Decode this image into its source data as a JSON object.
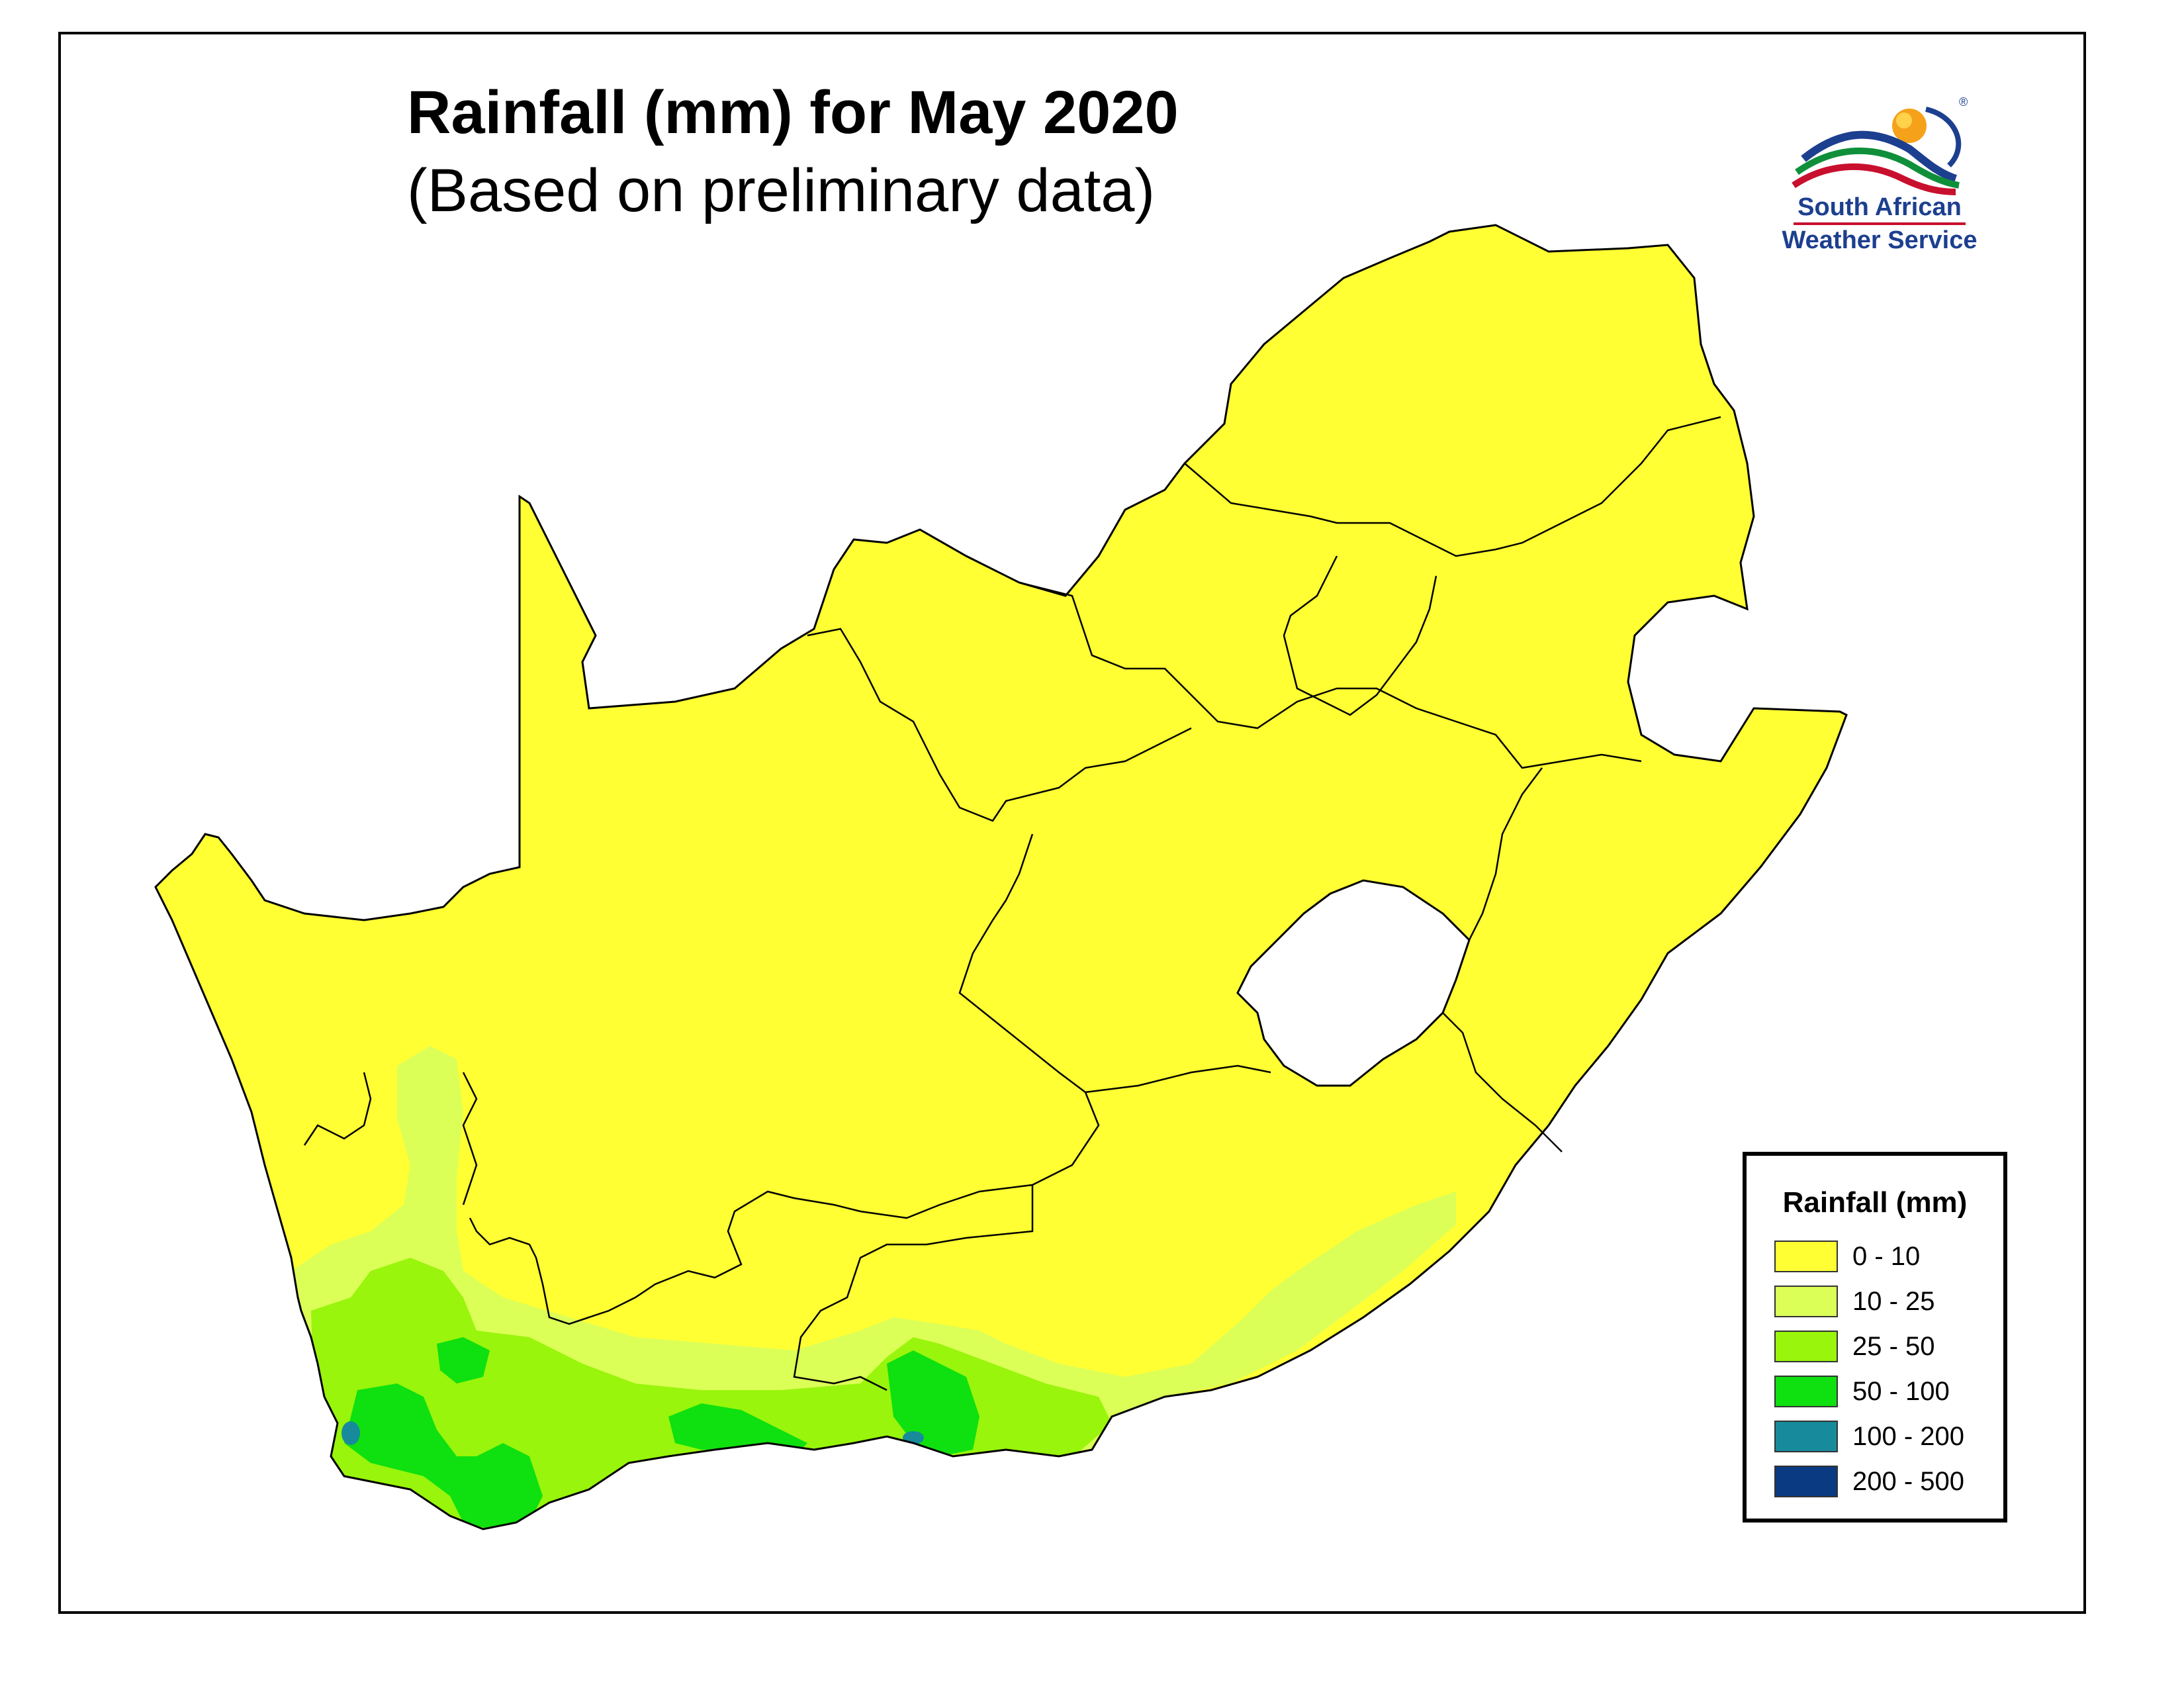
{
  "title": "Rainfall (mm) for May 2020",
  "subtitle": "(Based on preliminary data)",
  "logo": {
    "line1": "South African",
    "line2": "Weather Service",
    "registered_mark": "®"
  },
  "legend": {
    "title": "Rainfall (mm)",
    "items": [
      {
        "label": "0 - 10",
        "color": "#ffff33"
      },
      {
        "label": "10 - 25",
        "color": "#dcff57"
      },
      {
        "label": "25 - 50",
        "color": "#98f50b"
      },
      {
        "label": "50 - 100",
        "color": "#0fe00f"
      },
      {
        "label": "100 - 200",
        "color": "#178b9c"
      },
      {
        "label": "200 - 500",
        "color": "#0a3a82"
      }
    ]
  },
  "map": {
    "land_color": "#ffff33",
    "lesotho_color": "#ffffff",
    "border_color": "#000000"
  }
}
